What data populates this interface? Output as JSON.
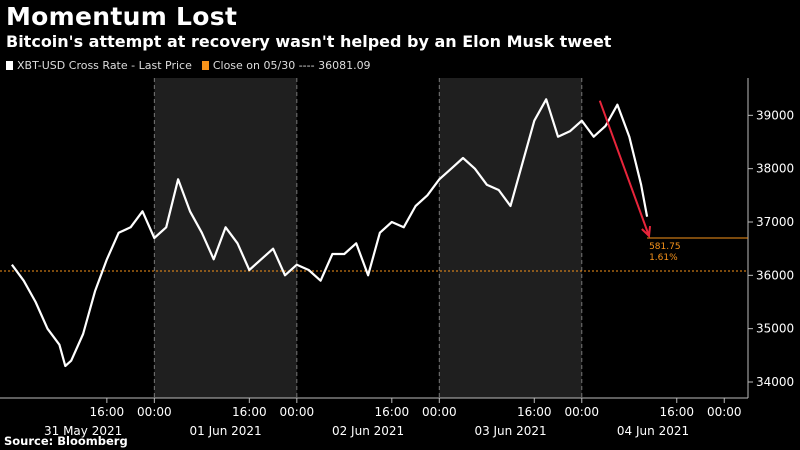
{
  "title": "Momentum Lost",
  "subtitle": "Bitcoin's attempt at recovery wasn't helped by an Elon Musk tweet",
  "source": "Source: Bloomberg",
  "legend": {
    "series_label": "XBT-USD Cross Rate - Last Price",
    "close_label": "Close on 05/30 ---- 36081.09"
  },
  "colors": {
    "line": "#ffffff",
    "reference": "#f7931a",
    "arrow": "#e8253b",
    "shade": "#1f1f1f"
  },
  "chart_data": {
    "type": "line",
    "series": [
      {
        "name": "XBT-USD Cross Rate - Last Price",
        "x": [
          "2021-05-31 00:00",
          "2021-05-31 02:00",
          "2021-05-31 04:00",
          "2021-05-31 06:00",
          "2021-05-31 08:00",
          "2021-05-31 09:00",
          "2021-05-31 10:00",
          "2021-05-31 12:00",
          "2021-05-31 14:00",
          "2021-05-31 16:00",
          "2021-05-31 18:00",
          "2021-05-31 20:00",
          "2021-05-31 22:00",
          "2021-06-01 00:00",
          "2021-06-01 02:00",
          "2021-06-01 04:00",
          "2021-06-01 06:00",
          "2021-06-01 08:00",
          "2021-06-01 10:00",
          "2021-06-01 12:00",
          "2021-06-01 14:00",
          "2021-06-01 16:00",
          "2021-06-01 18:00",
          "2021-06-01 20:00",
          "2021-06-01 22:00",
          "2021-06-02 00:00",
          "2021-06-02 02:00",
          "2021-06-02 04:00",
          "2021-06-02 06:00",
          "2021-06-02 08:00",
          "2021-06-02 10:00",
          "2021-06-02 12:00",
          "2021-06-02 14:00",
          "2021-06-02 16:00",
          "2021-06-02 18:00",
          "2021-06-02 20:00",
          "2021-06-02 22:00",
          "2021-06-03 00:00",
          "2021-06-03 02:00",
          "2021-06-03 04:00",
          "2021-06-03 06:00",
          "2021-06-03 08:00",
          "2021-06-03 10:00",
          "2021-06-03 12:00",
          "2021-06-03 14:00",
          "2021-06-03 16:00",
          "2021-06-03 18:00",
          "2021-06-03 20:00",
          "2021-06-03 22:00",
          "2021-06-04 00:00",
          "2021-06-04 02:00",
          "2021-06-04 04:00",
          "2021-06-04 06:00",
          "2021-06-04 08:00",
          "2021-06-04 10:00",
          "2021-06-04 11:00"
        ],
        "y": [
          36200,
          35900,
          35500,
          35000,
          34700,
          34300,
          34400,
          34900,
          35700,
          36300,
          36800,
          36900,
          37200,
          36700,
          36900,
          37800,
          37200,
          36800,
          36300,
          36900,
          36600,
          36100,
          36300,
          36500,
          36000,
          36200,
          36100,
          35900,
          36400,
          36400,
          36600,
          36000,
          36800,
          37000,
          36900,
          37300,
          37500,
          37800,
          38000,
          38200,
          38000,
          37700,
          37600,
          37300,
          38100,
          38900,
          39300,
          38600,
          38700,
          38900,
          38600,
          38800,
          39200,
          38600,
          37700,
          37100
        ],
        "last_price_label": "581.75",
        "last_pct_label": "1.61%"
      }
    ],
    "reference_line": {
      "label": "Close on 05/30",
      "value": 36081.09
    },
    "annotation": {
      "type": "arrow",
      "from": [
        "2021-06-04 00:00",
        39200
      ],
      "to": [
        "2021-06-04 12:00",
        36700
      ]
    },
    "xlim": [
      "2021-05-30 22:00",
      "2021-06-05 04:00"
    ],
    "ylim": [
      33700,
      39700
    ],
    "yticks": [
      34000,
      35000,
      36000,
      37000,
      38000,
      39000
    ],
    "xticks": [
      "16:00",
      "00:00",
      "16:00",
      "00:00",
      "16:00",
      "00:00",
      "16:00",
      "00:00",
      "16:00",
      "00:00"
    ],
    "xtick_times": [
      "2021-05-31 16:00",
      "2021-06-01 00:00",
      "2021-06-01 16:00",
      "2021-06-02 00:00",
      "2021-06-02 16:00",
      "2021-06-03 00:00",
      "2021-06-03 16:00",
      "2021-06-04 00:00",
      "2021-06-04 16:00",
      "2021-06-05 00:00"
    ],
    "date_labels": [
      "31 May 2021",
      "01 Jun 2021",
      "02 Jun 2021",
      "03 Jun 2021",
      "04 Jun 2021"
    ],
    "date_label_times": [
      "2021-05-31 12:00",
      "2021-06-01 12:00",
      "2021-06-02 12:00",
      "2021-06-03 12:00",
      "2021-06-04 12:00"
    ],
    "shaded_days": [
      [
        "2021-06-01 00:00",
        "2021-06-02 00:00"
      ],
      [
        "2021-06-03 00:00",
        "2021-06-04 00:00"
      ]
    ],
    "day_separators": [
      "2021-06-01 00:00",
      "2021-06-02 00:00",
      "2021-06-03 00:00",
      "2021-06-04 00:00"
    ],
    "grid": "vertical dashed at 00:00",
    "legend_position": "top-left"
  }
}
